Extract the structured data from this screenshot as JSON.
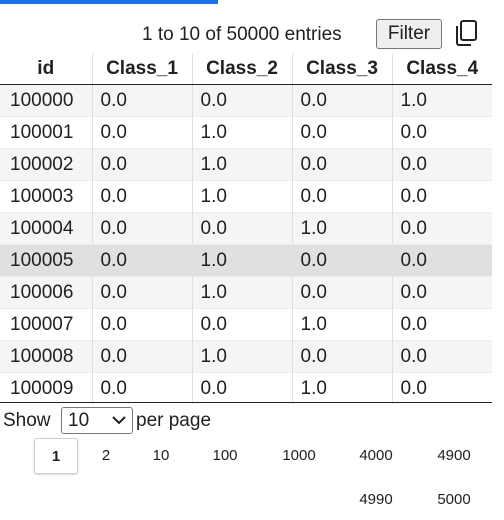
{
  "colors": {
    "accent": "#1a73e8",
    "selected_row": "#e0e0e0",
    "striped_row": "#f5f5f5"
  },
  "info": {
    "entries_text": "1 to 10 of 50000 entries",
    "filter_label": "Filter",
    "copy_icon": "copy-icon"
  },
  "table": {
    "columns": [
      "id",
      "Class_1",
      "Class_2",
      "Class_3",
      "Class_4"
    ],
    "selected_row_index": 5,
    "rows": [
      [
        "100000",
        "0.0",
        "0.0",
        "0.0",
        "1.0"
      ],
      [
        "100001",
        "0.0",
        "1.0",
        "0.0",
        "0.0"
      ],
      [
        "100002",
        "0.0",
        "1.0",
        "0.0",
        "0.0"
      ],
      [
        "100003",
        "0.0",
        "1.0",
        "0.0",
        "0.0"
      ],
      [
        "100004",
        "0.0",
        "0.0",
        "1.0",
        "0.0"
      ],
      [
        "100005",
        "0.0",
        "1.0",
        "0.0",
        "0.0"
      ],
      [
        "100006",
        "0.0",
        "1.0",
        "0.0",
        "0.0"
      ],
      [
        "100007",
        "0.0",
        "0.0",
        "1.0",
        "0.0"
      ],
      [
        "100008",
        "0.0",
        "1.0",
        "0.0",
        "0.0"
      ],
      [
        "100009",
        "0.0",
        "0.0",
        "1.0",
        "0.0"
      ]
    ]
  },
  "pager": {
    "show_label": "Show",
    "page_size": "10",
    "per_page_label": "per page",
    "current_page": "1",
    "pages": [
      "1",
      "2",
      "10",
      "100",
      "1000",
      "4000",
      "4900",
      "4990",
      "5000"
    ]
  }
}
